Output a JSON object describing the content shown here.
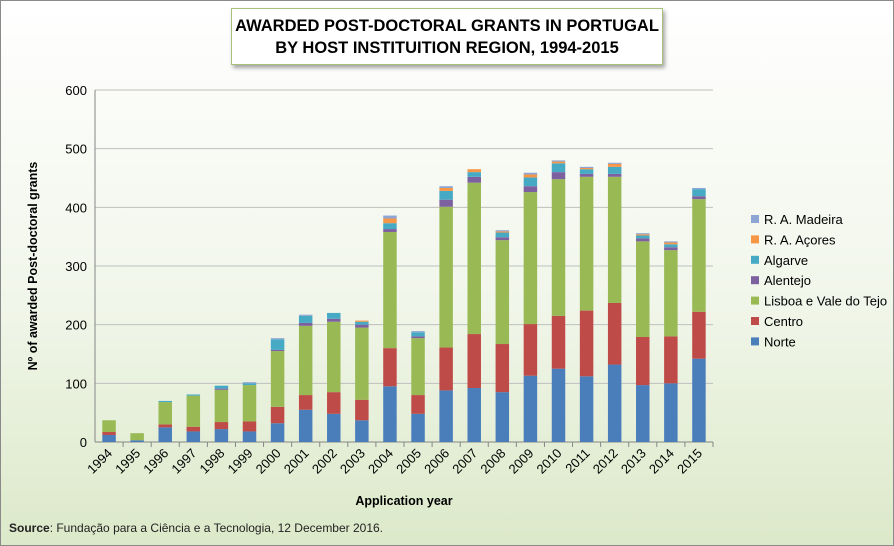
{
  "title_line1": "AWARDED POST-DOCTORAL GRANTS IN PORTUGAL",
  "title_line2": "BY HOST INSTITUITION REGION, 1994-2015",
  "source_label": "Source",
  "source_text": ": Fundação para a Ciência e a Tecnologia, 12 December 2016.",
  "chart_data": {
    "type": "bar",
    "stacked": true,
    "title": "AWARDED POST-DOCTORAL GRANTS IN PORTUGAL BY HOST INSTITUITION REGION, 1994-2015",
    "xlabel": "Application year",
    "ylabel": "Nº of awarded Post-doctoral grants",
    "ylim": [
      0,
      600
    ],
    "yticks": [
      0,
      100,
      200,
      300,
      400,
      500,
      600
    ],
    "grid": true,
    "legend_position": "right",
    "categories": [
      "1994",
      "1995",
      "1996",
      "1997",
      "1998",
      "1999",
      "2000",
      "2001",
      "2002",
      "2003",
      "2004",
      "2005",
      "2006",
      "2007",
      "2008",
      "2009",
      "2010",
      "2011",
      "2012",
      "2013",
      "2014",
      "2015"
    ],
    "series": [
      {
        "name": "Norte",
        "color": "#4a7ebb",
        "values": [
          12,
          3,
          25,
          18,
          22,
          18,
          32,
          55,
          48,
          37,
          95,
          48,
          88,
          92,
          85,
          113,
          125,
          112,
          132,
          97,
          100,
          142
        ]
      },
      {
        "name": "Centro",
        "color": "#be4b48",
        "values": [
          5,
          0,
          5,
          8,
          12,
          17,
          28,
          25,
          37,
          35,
          65,
          32,
          73,
          92,
          82,
          88,
          90,
          112,
          105,
          82,
          80,
          80
        ]
      },
      {
        "name": "Lisboa e Vale do Tejo",
        "color": "#98b954",
        "values": [
          20,
          12,
          38,
          53,
          55,
          62,
          95,
          118,
          120,
          123,
          198,
          97,
          240,
          258,
          177,
          225,
          233,
          228,
          215,
          163,
          147,
          192
        ]
      },
      {
        "name": "Alentejo",
        "color": "#7d60a0",
        "values": [
          0,
          0,
          0,
          0,
          2,
          0,
          2,
          5,
          5,
          5,
          5,
          3,
          12,
          10,
          5,
          10,
          12,
          5,
          5,
          5,
          5,
          5
        ]
      },
      {
        "name": "Algarve",
        "color": "#46aac5",
        "values": [
          0,
          0,
          2,
          2,
          5,
          3,
          18,
          12,
          10,
          5,
          10,
          7,
          15,
          8,
          8,
          15,
          15,
          8,
          12,
          5,
          5,
          12
        ]
      },
      {
        "name": "R. A. Açores",
        "color": "#f79646",
        "values": [
          0,
          0,
          0,
          0,
          0,
          0,
          0,
          0,
          0,
          2,
          8,
          0,
          5,
          5,
          2,
          5,
          3,
          2,
          5,
          2,
          3,
          0
        ]
      },
      {
        "name": "R. A. Madeira",
        "color": "#8da5d2",
        "values": [
          0,
          0,
          0,
          0,
          0,
          2,
          2,
          2,
          0,
          0,
          5,
          2,
          3,
          0,
          2,
          3,
          2,
          2,
          2,
          2,
          2,
          2
        ]
      }
    ]
  }
}
